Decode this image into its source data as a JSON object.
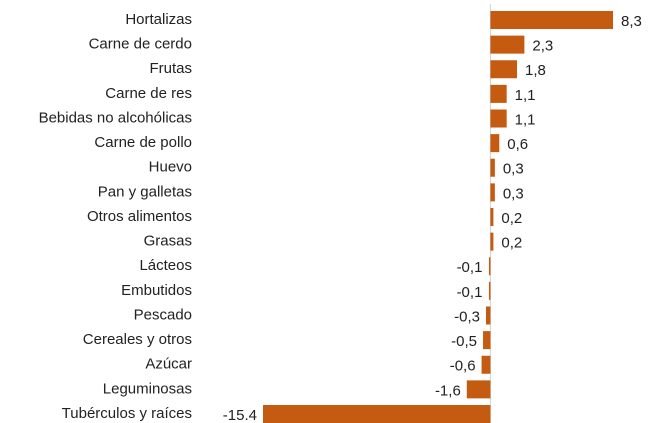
{
  "chart_data": {
    "type": "hbar",
    "color": "#c55a11",
    "categories": [
      "Hortalizas",
      "Carne de cerdo",
      "Frutas",
      "Carne de res",
      "Bebidas no alcohólicas",
      "Carne de pollo",
      "Huevo",
      "Pan y galletas",
      "Otros alimentos",
      "Grasas",
      "Lácteos",
      "Embutidos",
      "Pescado",
      "Cereales y otros",
      "Azúcar",
      "Leguminosas",
      "Tubérculos y raíces"
    ],
    "values": [
      8.3,
      2.3,
      1.8,
      1.1,
      1.1,
      0.6,
      0.3,
      0.3,
      0.2,
      0.2,
      -0.1,
      -0.1,
      -0.3,
      -0.5,
      -0.6,
      -1.6,
      -15.4
    ],
    "value_labels": [
      "8,3",
      "2,3",
      "1,8",
      "1,1",
      "1,1",
      "0,6",
      "0,3",
      "0,3",
      "0,2",
      "0,2",
      "-0,1",
      "-0,1",
      "-0,3",
      "-0,5",
      "-0,6",
      "-1,6",
      "-15.4"
    ]
  }
}
